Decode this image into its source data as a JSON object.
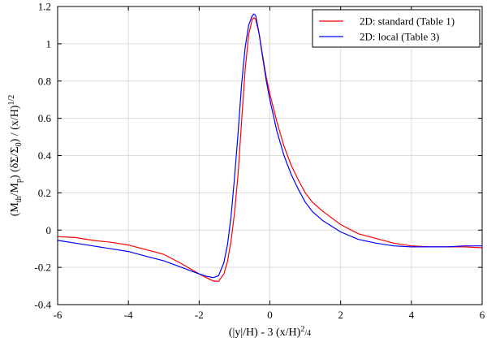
{
  "chart_data": {
    "type": "line",
    "xlabel": "(|y|/H) - 3 (x/H)²/4",
    "ylabel": "(Mth/Mp) (δΣ/Σ0) / (x/H)^1/2",
    "xlim": [
      -6,
      6
    ],
    "ylim": [
      -0.4,
      1.2
    ],
    "xticks": [
      -6,
      -4,
      -2,
      0,
      2,
      4,
      6
    ],
    "yticks": [
      -0.4,
      -0.2,
      0,
      0.2,
      0.4,
      0.6,
      0.8,
      1,
      1.2
    ],
    "xtick_labels": [
      "-6",
      "-4",
      "-2",
      "0",
      "2",
      "4",
      "6"
    ],
    "ytick_labels": [
      "-0.4",
      "-0.2",
      "0",
      "0.2",
      "0.4",
      "0.6",
      "0.8",
      "1",
      "1.2"
    ],
    "grid": true,
    "legend_position": "top-right",
    "series": [
      {
        "name": "2D: standard (Table 1)",
        "color": "#ff0000",
        "x": [
          -6.0,
          -5.5,
          -5.0,
          -4.5,
          -4.0,
          -3.5,
          -3.0,
          -2.5,
          -2.0,
          -1.8,
          -1.6,
          -1.45,
          -1.3,
          -1.2,
          -1.1,
          -1.0,
          -0.9,
          -0.8,
          -0.7,
          -0.6,
          -0.5,
          -0.45,
          -0.4,
          -0.3,
          -0.2,
          -0.1,
          0.0,
          0.2,
          0.4,
          0.6,
          0.8,
          1.0,
          1.2,
          1.5,
          2.0,
          2.5,
          3.0,
          3.5,
          4.0,
          4.5,
          5.0,
          5.5,
          6.0
        ],
        "y": [
          -0.035,
          -0.04,
          -0.055,
          -0.065,
          -0.08,
          -0.105,
          -0.13,
          -0.18,
          -0.235,
          -0.255,
          -0.273,
          -0.275,
          -0.235,
          -0.17,
          -0.06,
          0.09,
          0.3,
          0.58,
          0.86,
          1.05,
          1.13,
          1.14,
          1.13,
          1.05,
          0.93,
          0.82,
          0.73,
          0.58,
          0.45,
          0.35,
          0.27,
          0.2,
          0.15,
          0.1,
          0.03,
          -0.02,
          -0.045,
          -0.07,
          -0.085,
          -0.09,
          -0.09,
          -0.09,
          -0.095
        ]
      },
      {
        "name": "2D: local (Table 3)",
        "color": "#0000ff",
        "x": [
          -6.0,
          -5.5,
          -5.0,
          -4.5,
          -4.0,
          -3.5,
          -3.0,
          -2.5,
          -2.0,
          -1.8,
          -1.6,
          -1.45,
          -1.3,
          -1.2,
          -1.1,
          -1.0,
          -0.9,
          -0.8,
          -0.7,
          -0.6,
          -0.5,
          -0.45,
          -0.4,
          -0.3,
          -0.2,
          -0.1,
          0.0,
          0.2,
          0.4,
          0.6,
          0.8,
          1.0,
          1.2,
          1.5,
          2.0,
          2.5,
          3.0,
          3.5,
          4.0,
          4.5,
          5.0,
          5.5,
          6.0
        ],
        "y": [
          -0.055,
          -0.07,
          -0.085,
          -0.1,
          -0.115,
          -0.14,
          -0.165,
          -0.2,
          -0.235,
          -0.248,
          -0.255,
          -0.245,
          -0.175,
          -0.08,
          0.07,
          0.28,
          0.52,
          0.78,
          0.98,
          1.1,
          1.15,
          1.16,
          1.15,
          1.05,
          0.92,
          0.8,
          0.7,
          0.53,
          0.4,
          0.3,
          0.22,
          0.15,
          0.1,
          0.05,
          -0.01,
          -0.05,
          -0.07,
          -0.085,
          -0.09,
          -0.09,
          -0.09,
          -0.085,
          -0.085
        ]
      }
    ]
  }
}
